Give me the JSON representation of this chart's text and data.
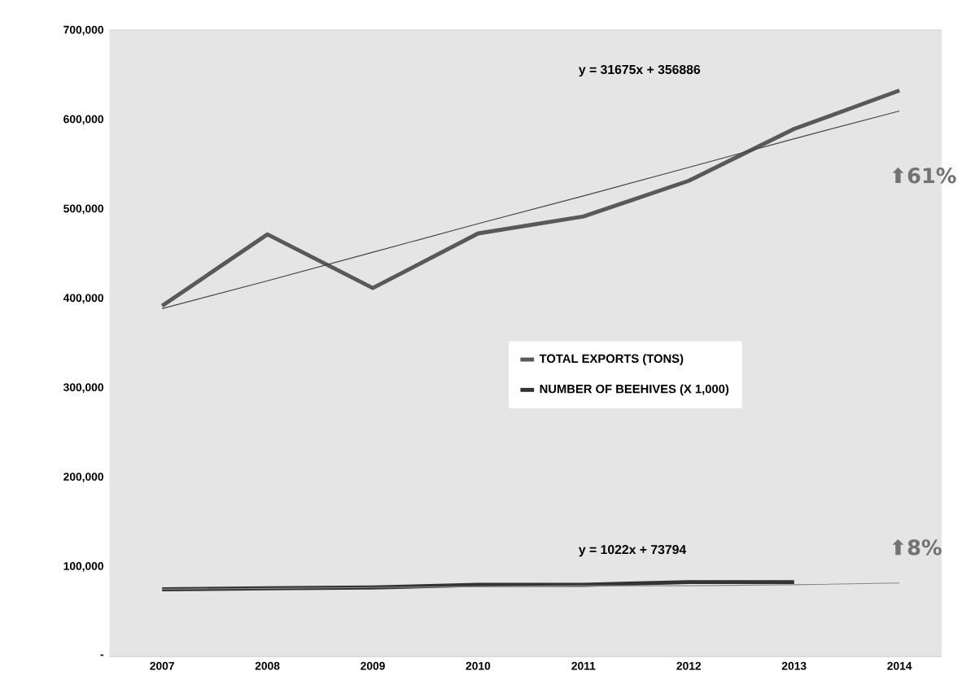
{
  "chart_data": {
    "type": "line",
    "categories": [
      "2007",
      "2008",
      "2009",
      "2010",
      "2011",
      "2012",
      "2013",
      "2014"
    ],
    "series": [
      {
        "name": "TOTAL EXPORTS (TONS)",
        "color": "#595959",
        "values": [
          392000,
          472000,
          412000,
          473000,
          492000,
          532000,
          590000,
          633000
        ]
      },
      {
        "name": "NUMBER OF BEEHIVES (X 1,000)",
        "color": "#333333",
        "values": [
          75000,
          76000,
          77000,
          80000,
          80000,
          83000,
          83000,
          null
        ]
      },
      {
        "type": "line",
        "color": "#444444",
        "values": [
          389000,
          420000,
          452000,
          484000,
          515000,
          547000,
          579000,
          610000
        ]
      },
      {
        "type": "line",
        "color": "#888888",
        "values": [
          75000,
          76000,
          77000,
          78000,
          79000,
          79000,
          80000,
          82000
        ]
      }
    ],
    "ylim": [
      0,
      700000
    ],
    "yticks": [
      {
        "value": 0,
        "label": "-"
      },
      {
        "value": 100000,
        "label": "100,000"
      },
      {
        "value": 200000,
        "label": "200,000"
      },
      {
        "value": 300000,
        "label": "300,000"
      },
      {
        "value": 400000,
        "label": "400,000"
      },
      {
        "value": 500000,
        "label": "500,000"
      },
      {
        "value": 600000,
        "label": "600,000"
      },
      {
        "value": 700000,
        "label": "700,000"
      }
    ],
    "grid": "y",
    "legend": "center",
    "annotations": [
      "y = 31675x + 356886",
      "⬆61%",
      "y = 1022x + 73794",
      "⬆8%"
    ]
  }
}
